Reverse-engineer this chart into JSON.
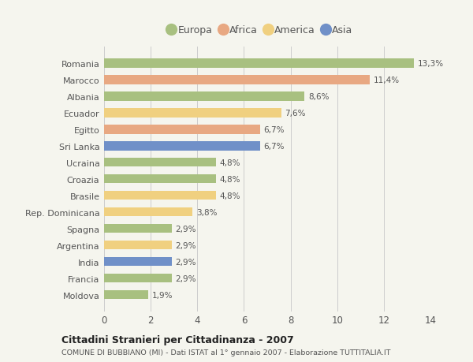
{
  "countries": [
    "Romania",
    "Marocco",
    "Albania",
    "Ecuador",
    "Egitto",
    "Sri Lanka",
    "Ucraina",
    "Croazia",
    "Brasile",
    "Rep. Dominicana",
    "Spagna",
    "Argentina",
    "India",
    "Francia",
    "Moldova"
  ],
  "values": [
    13.3,
    11.4,
    8.6,
    7.6,
    6.7,
    6.7,
    4.8,
    4.8,
    4.8,
    3.8,
    2.9,
    2.9,
    2.9,
    2.9,
    1.9
  ],
  "labels": [
    "13,3%",
    "11,4%",
    "8,6%",
    "7,6%",
    "6,7%",
    "6,7%",
    "4,8%",
    "4,8%",
    "4,8%",
    "3,8%",
    "2,9%",
    "2,9%",
    "2,9%",
    "2,9%",
    "1,9%"
  ],
  "continents": [
    "Europa",
    "Africa",
    "Europa",
    "America",
    "Africa",
    "Asia",
    "Europa",
    "Europa",
    "America",
    "America",
    "Europa",
    "America",
    "Asia",
    "Europa",
    "Europa"
  ],
  "colors": {
    "Europa": "#a8c080",
    "Africa": "#e8a882",
    "America": "#f0d080",
    "Asia": "#7090c8"
  },
  "legend_order": [
    "Europa",
    "Africa",
    "America",
    "Asia"
  ],
  "xlim": [
    0,
    14
  ],
  "xticks": [
    0,
    2,
    4,
    6,
    8,
    10,
    12,
    14
  ],
  "title": "Cittadini Stranieri per Cittadinanza - 2007",
  "subtitle": "COMUNE DI BUBBIANO (MI) - Dati ISTAT al 1° gennaio 2007 - Elaborazione TUTTITALIA.IT",
  "background_color": "#f5f5ee",
  "bar_height": 0.55,
  "grid_color": "#cccccc"
}
